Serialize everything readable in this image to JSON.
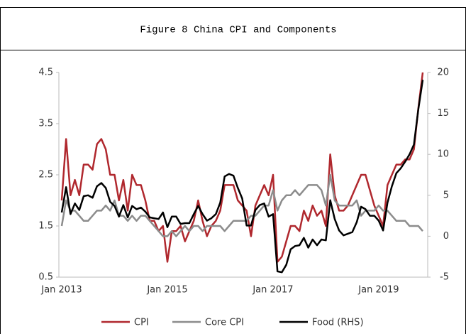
{
  "chart_data": {
    "type": "line",
    "title": "Figure 8 China CPI and Components",
    "categories": [
      "Jan 2013",
      null,
      null,
      null,
      null,
      null,
      null,
      null,
      null,
      null,
      null,
      null,
      null,
      null,
      null,
      null,
      null,
      null,
      null,
      null,
      null,
      null,
      null,
      null,
      "Jan 2015",
      null,
      null,
      null,
      null,
      null,
      null,
      null,
      null,
      null,
      null,
      null,
      null,
      null,
      null,
      null,
      null,
      null,
      null,
      null,
      null,
      null,
      null,
      null,
      "Jan 2017",
      null,
      null,
      null,
      null,
      null,
      null,
      null,
      null,
      null,
      null,
      null,
      null,
      null,
      null,
      null,
      null,
      null,
      null,
      null,
      null,
      null,
      null,
      null,
      "Jan 2019",
      null,
      null,
      null,
      null,
      null,
      null,
      null,
      null,
      null,
      null
    ],
    "series": [
      {
        "name": "CPI",
        "color": "#b0282e",
        "values": [
          2.0,
          3.2,
          2.1,
          2.4,
          2.1,
          2.7,
          2.7,
          2.6,
          3.1,
          3.2,
          3.0,
          2.5,
          2.5,
          2.0,
          2.4,
          1.8,
          2.5,
          2.3,
          2.3,
          2.0,
          1.6,
          1.6,
          1.4,
          1.5,
          0.8,
          1.4,
          1.4,
          1.5,
          1.2,
          1.4,
          1.6,
          2.0,
          1.6,
          1.3,
          1.5,
          1.6,
          1.8,
          2.3,
          2.3,
          2.3,
          2.0,
          1.9,
          1.8,
          1.3,
          1.9,
          2.1,
          2.3,
          2.1,
          2.5,
          0.8,
          0.9,
          1.2,
          1.5,
          1.5,
          1.4,
          1.8,
          1.6,
          1.9,
          1.7,
          1.8,
          1.5,
          2.9,
          2.1,
          1.8,
          1.8,
          1.9,
          2.1,
          2.3,
          2.5,
          2.5,
          2.2,
          1.9,
          1.7,
          1.5,
          2.3,
          2.5,
          2.7,
          2.7,
          2.8,
          2.8,
          3.0,
          3.8,
          4.5
        ]
      },
      {
        "name": "Core CPI",
        "color": "#8c8c8c",
        "values": [
          1.5,
          2.0,
          1.8,
          1.8,
          1.7,
          1.6,
          1.6,
          1.7,
          1.8,
          1.8,
          1.9,
          1.8,
          2.0,
          1.7,
          1.7,
          1.6,
          1.7,
          1.6,
          1.7,
          1.7,
          1.6,
          1.5,
          1.4,
          1.3,
          1.3,
          1.4,
          1.3,
          1.4,
          1.5,
          1.4,
          1.5,
          1.5,
          1.4,
          1.5,
          1.5,
          1.5,
          1.5,
          1.4,
          1.5,
          1.6,
          1.6,
          1.6,
          1.6,
          1.7,
          1.7,
          1.8,
          1.9,
          1.9,
          2.2,
          1.8,
          2.0,
          2.1,
          2.1,
          2.2,
          2.1,
          2.2,
          2.3,
          2.3,
          2.3,
          2.2,
          1.9,
          2.5,
          2.0,
          1.9,
          1.9,
          1.9,
          1.9,
          2.0,
          1.7,
          1.8,
          1.8,
          1.8,
          1.9,
          1.8,
          1.8,
          1.7,
          1.6,
          1.6,
          1.6,
          1.5,
          1.5,
          1.5,
          1.4
        ]
      },
      {
        "name": "Food (RHS)",
        "color": "#000000",
        "axis": "y2",
        "values": [
          2.9,
          6.0,
          2.7,
          4.0,
          3.2,
          4.9,
          5.0,
          4.7,
          6.1,
          6.5,
          5.9,
          4.2,
          3.7,
          2.4,
          3.8,
          2.3,
          3.7,
          3.3,
          3.5,
          3.0,
          2.3,
          2.2,
          2.1,
          2.9,
          1.1,
          2.4,
          2.4,
          1.5,
          1.6,
          1.6,
          2.7,
          3.7,
          2.7,
          1.9,
          2.2,
          2.7,
          4.1,
          7.3,
          7.6,
          7.4,
          5.9,
          4.6,
          1.3,
          1.3,
          3.2,
          3.8,
          4.0,
          2.4,
          2.7,
          -4.3,
          -4.4,
          -3.5,
          -1.6,
          -1.2,
          -1.1,
          -0.2,
          -1.4,
          -0.4,
          -1.1,
          -0.4,
          -0.5,
          4.4,
          2.1,
          0.7,
          0.1,
          0.3,
          0.5,
          1.7,
          3.6,
          3.3,
          2.5,
          2.5,
          1.9,
          0.7,
          4.1,
          6.1,
          7.7,
          8.3,
          9.1,
          10.0,
          11.2,
          15.5,
          19.1
        ]
      }
    ],
    "ylim": [
      0.5,
      4.5
    ],
    "yticks": [
      0.5,
      1.5,
      2.5,
      3.5,
      4.5
    ],
    "y2lim": [
      -5,
      20
    ],
    "y2ticks": [
      -5,
      0,
      5,
      10,
      15,
      20
    ],
    "grid": false,
    "legend": "bottom"
  }
}
